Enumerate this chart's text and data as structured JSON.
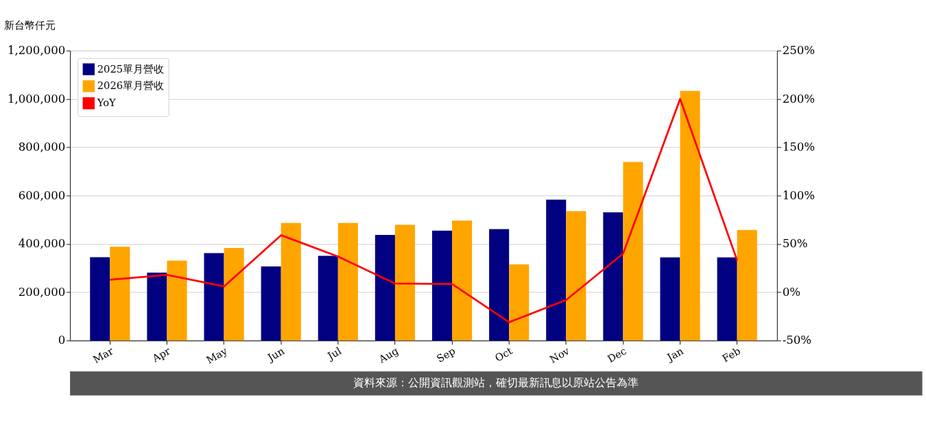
{
  "chart_data": {
    "type": "bar",
    "ylabel": "新台幣仟元",
    "categories": [
      "Mar",
      "Apr",
      "May",
      "Jun",
      "Jul",
      "Aug",
      "Sep",
      "Oct",
      "Nov",
      "Dec",
      "Jan",
      "Feb"
    ],
    "series": [
      {
        "name": "2025單月營收",
        "color": "#000080",
        "values": [
          345000,
          281000,
          362000,
          307000,
          351000,
          437000,
          455000,
          461000,
          583000,
          531000,
          344000,
          344000
        ]
      },
      {
        "name": "2026單月營收",
        "color": "#ffa500",
        "values": [
          388000,
          331000,
          383000,
          487000,
          487000,
          479000,
          497000,
          315000,
          536000,
          739000,
          1033000,
          458000
        ]
      },
      {
        "name": "YoY",
        "type": "line",
        "axis": "y2",
        "color": "#ff0000",
        "values": [
          13,
          18,
          6,
          59,
          37,
          9,
          8.5,
          -31,
          -8,
          40,
          200,
          33
        ]
      }
    ],
    "ylim": [
      0,
      1200000
    ],
    "yticks": [
      {
        "value": 0,
        "label": "0"
      },
      {
        "value": 200000,
        "label": "200,000"
      },
      {
        "value": 400000,
        "label": "400,000"
      },
      {
        "value": 600000,
        "label": "600,000"
      },
      {
        "value": 800000,
        "label": "800,000"
      },
      {
        "value": 1000000,
        "label": "1,000,000"
      },
      {
        "value": 1200000,
        "label": "1,200,000"
      }
    ],
    "y2lim": [
      -50,
      250
    ],
    "y2ticks": [
      {
        "value": -50,
        "label": "-50%"
      },
      {
        "value": 0,
        "label": "0%"
      },
      {
        "value": 50,
        "label": "50%"
      },
      {
        "value": 100,
        "label": "100%"
      },
      {
        "value": 150,
        "label": "150%"
      },
      {
        "value": 200,
        "label": "200%"
      },
      {
        "value": 250,
        "label": "250%"
      }
    ],
    "grid": "y",
    "legend": "top left",
    "annotations": [
      "資料來源：公開資訊觀測站，確切最新訊息以原站公告為準"
    ]
  }
}
